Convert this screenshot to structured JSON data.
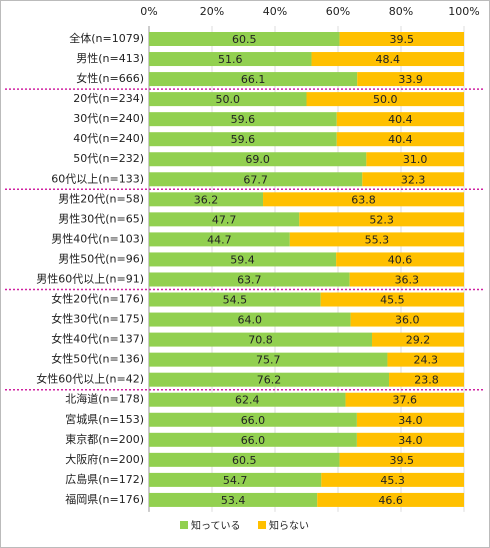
{
  "chart_data": {
    "type": "stacked_bar_horizontal",
    "categories": [
      "全体(n=1079)",
      "男性(n=413)",
      "女性(n=666)",
      "20代(n=234)",
      "30代(n=240)",
      "40代(n=240)",
      "50代(n=232)",
      "60代以上(n=133)",
      "男性20代(n=58)",
      "男性30代(n=65)",
      "男性40代(n=103)",
      "男性50代(n=96)",
      "男性60代以上(n=91)",
      "女性20代(n=176)",
      "女性30代(n=175)",
      "女性40代(n=137)",
      "女性50代(n=136)",
      "女性60代以上(n=42)",
      "北海道(n=178)",
      "宮城県(n=153)",
      "東京都(n=200)",
      "大阪府(n=200)",
      "広島県(n=172)",
      "福岡県(n=176)"
    ],
    "series": [
      {
        "name": "知っている",
        "color": "#92d050",
        "values": [
          60.5,
          51.6,
          66.1,
          50.0,
          59.6,
          59.6,
          69.0,
          67.7,
          36.2,
          47.7,
          44.7,
          59.4,
          63.7,
          54.5,
          64.0,
          70.8,
          75.7,
          76.2,
          62.4,
          66.0,
          66.0,
          60.5,
          54.7,
          53.4
        ],
        "value_labels": [
          "60.5",
          "51.6",
          "66.1",
          "50.0",
          "59.6",
          "59.6",
          "69.0",
          "67.7",
          "36.2",
          "47.7",
          "44.7",
          "59.4",
          "63.7",
          "54.5",
          "64.0",
          "70.8",
          "75.7",
          "76.2",
          "62.4",
          "66.0",
          "66.0",
          "60.5",
          "54.7",
          "53.4"
        ]
      },
      {
        "name": "知らない",
        "color": "#ffc000",
        "values": [
          39.5,
          48.4,
          33.9,
          50.0,
          40.4,
          40.4,
          31.0,
          32.3,
          63.8,
          52.3,
          55.3,
          40.6,
          36.3,
          45.5,
          36.0,
          29.2,
          24.3,
          23.8,
          37.6,
          34.0,
          34.0,
          39.5,
          45.3,
          46.6
        ],
        "value_labels": [
          "39.5",
          "48.4",
          "33.9",
          "50.0",
          "40.4",
          "40.4",
          "31.0",
          "32.3",
          "63.8",
          "52.3",
          "55.3",
          "40.6",
          "36.3",
          "45.5",
          "36.0",
          "29.2",
          "24.3",
          "23.8",
          "37.6",
          "34.0",
          "34.0",
          "39.5",
          "45.3",
          "46.6"
        ]
      }
    ],
    "xlim": [
      0,
      100
    ],
    "xticks": [
      {
        "value": 0,
        "label": "0%"
      },
      {
        "value": 20,
        "label": "20%"
      },
      {
        "value": 40,
        "label": "40%"
      },
      {
        "value": 60,
        "label": "60%"
      },
      {
        "value": 80,
        "label": "80%"
      },
      {
        "value": 100,
        "label": "100%"
      }
    ],
    "grid": true,
    "legend": "bottom"
  }
}
